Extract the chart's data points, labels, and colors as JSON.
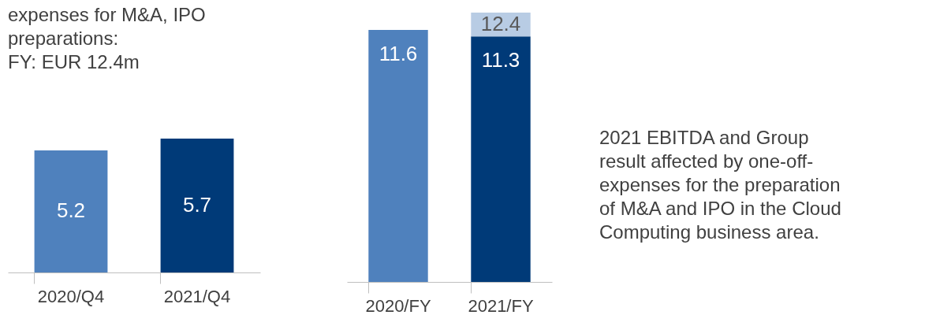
{
  "chart_data": [
    {
      "type": "bar",
      "categories": [
        "2020/Q4",
        "2021/Q4"
      ],
      "values": [
        5.2,
        5.7
      ],
      "colors": [
        "#4f81bd",
        "#003a78"
      ],
      "data_labels": true,
      "annotations": [
        "expenses for M&A, IPO\npreparations:\nFY: EUR 12.4m"
      ]
    },
    {
      "type": "bar",
      "stacked": true,
      "categories": [
        "2020/FY",
        "2021/FY"
      ],
      "series": [
        {
          "colors": [
            "#4f81bd",
            "#003a78"
          ],
          "values": [
            11.6,
            11.3
          ],
          "value_labels": [
            "11.6",
            "11.3"
          ]
        },
        {
          "color": "#b8cce4",
          "values": [
            null,
            1.1
          ]
        }
      ],
      "totals": [
        null,
        "12.4"
      ],
      "annotations": [
        "2021 EBITDA and Group\nresult affected by one-off-\nexpenses for the preparation\nof M&A and IPO in the Cloud\nComputing business area."
      ]
    }
  ]
}
